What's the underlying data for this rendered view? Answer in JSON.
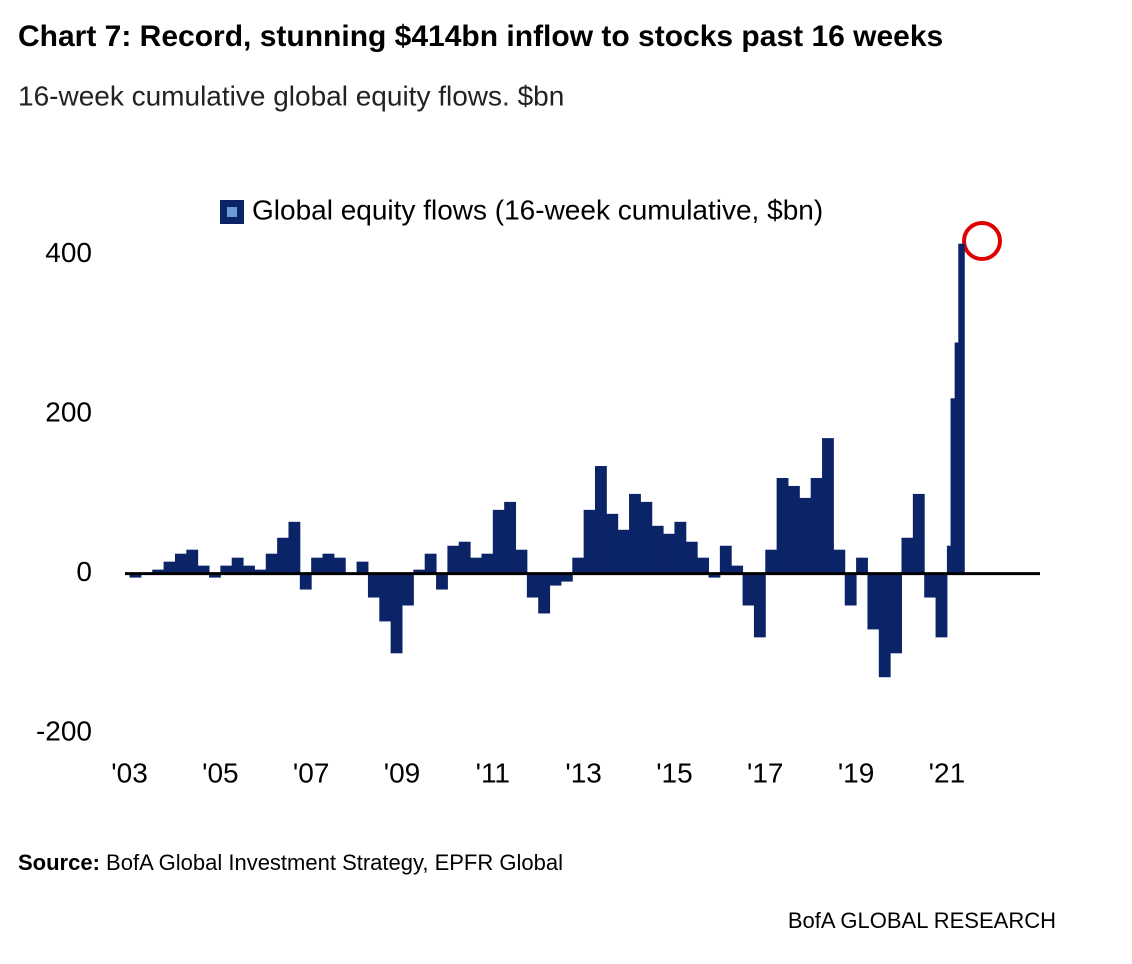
{
  "chart_data": {
    "type": "bar",
    "title": "Chart 7: Record, stunning $414bn inflow to stocks past 16 weeks",
    "subtitle": "16-week cumulative global equity flows. $bn",
    "source_label": "Source:",
    "source": "BofA Global Investment Strategy, EPFR Global",
    "footer": "BofA GLOBAL RESEARCH",
    "color": "#0b2468",
    "legend": "top",
    "x": [
      2003.0,
      2003.25,
      2003.5,
      2003.75,
      2004.0,
      2004.25,
      2004.5,
      2004.75,
      2005.0,
      2005.25,
      2005.5,
      2005.75,
      2006.0,
      2006.25,
      2006.5,
      2006.75,
      2007.0,
      2007.25,
      2007.5,
      2007.75,
      2008.0,
      2008.25,
      2008.5,
      2008.75,
      2009.0,
      2009.25,
      2009.5,
      2009.75,
      2010.0,
      2010.25,
      2010.5,
      2010.75,
      2011.0,
      2011.25,
      2011.5,
      2011.75,
      2012.0,
      2012.25,
      2012.5,
      2012.75,
      2013.0,
      2013.25,
      2013.5,
      2013.75,
      2014.0,
      2014.25,
      2014.5,
      2014.75,
      2015.0,
      2015.25,
      2015.5,
      2015.75,
      2016.0,
      2016.25,
      2016.5,
      2016.75,
      2017.0,
      2017.25,
      2017.5,
      2017.75,
      2018.0,
      2018.25,
      2018.5,
      2018.75,
      2019.0,
      2019.25,
      2019.5,
      2019.75,
      2020.0,
      2020.25,
      2020.5,
      2020.75,
      2021.0,
      2021.08,
      2021.17,
      2021.25
    ],
    "series": [
      {
        "name": "Global equity flows (16-week cumulative, $bn)",
        "color": "#0b2468",
        "values": [
          -5,
          0,
          5,
          15,
          25,
          30,
          10,
          -5,
          10,
          20,
          10,
          5,
          25,
          45,
          65,
          -20,
          20,
          25,
          20,
          0,
          15,
          -30,
          -60,
          -100,
          -40,
          5,
          25,
          -20,
          35,
          40,
          20,
          25,
          80,
          90,
          30,
          -30,
          -50,
          -15,
          -10,
          20,
          80,
          135,
          75,
          55,
          100,
          90,
          60,
          50,
          65,
          40,
          20,
          -5,
          35,
          10,
          -40,
          -80,
          30,
          120,
          110,
          95,
          120,
          170,
          30,
          -40,
          20,
          -70,
          -130,
          -100,
          45,
          100,
          -30,
          -80,
          35,
          220,
          290,
          414
        ]
      }
    ],
    "xlim": [
      2002.9,
      2023.05
    ],
    "ylim": [
      -200,
      450
    ],
    "xticks": [
      {
        "value": 2003,
        "label": "'03"
      },
      {
        "value": 2005,
        "label": "'05"
      },
      {
        "value": 2007,
        "label": "'07"
      },
      {
        "value": 2009,
        "label": "'09"
      },
      {
        "value": 2011,
        "label": "'11"
      },
      {
        "value": 2013,
        "label": "'13"
      },
      {
        "value": 2015,
        "label": "'15"
      },
      {
        "value": 2017,
        "label": "'17"
      },
      {
        "value": 2019,
        "label": "'19"
      },
      {
        "value": 2021,
        "label": "'21"
      }
    ],
    "yticks": [
      -200,
      0,
      200,
      400
    ]
  }
}
